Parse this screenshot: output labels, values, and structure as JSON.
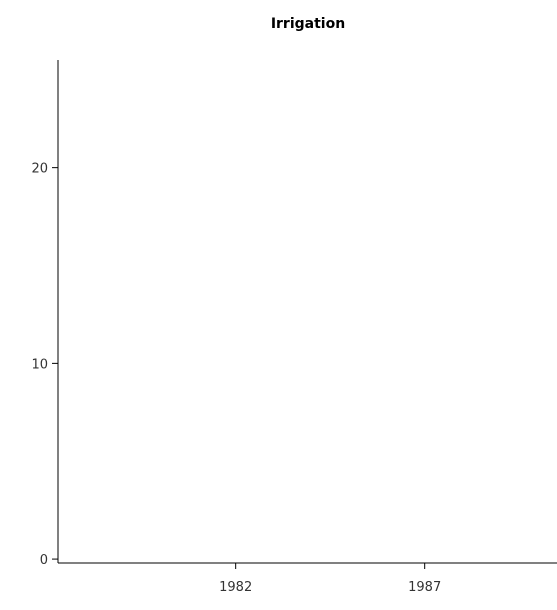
{
  "chart_data": {
    "type": "line",
    "title": "Irrigation",
    "xlabel": "",
    "ylabel": "",
    "x_ticks": [
      1982,
      1987
    ],
    "y_ticks": [
      0,
      10,
      20
    ],
    "xlim": [
      1977.3,
      1990.5
    ],
    "ylim": [
      -0.2,
      25.5
    ],
    "grid": false,
    "series": []
  }
}
